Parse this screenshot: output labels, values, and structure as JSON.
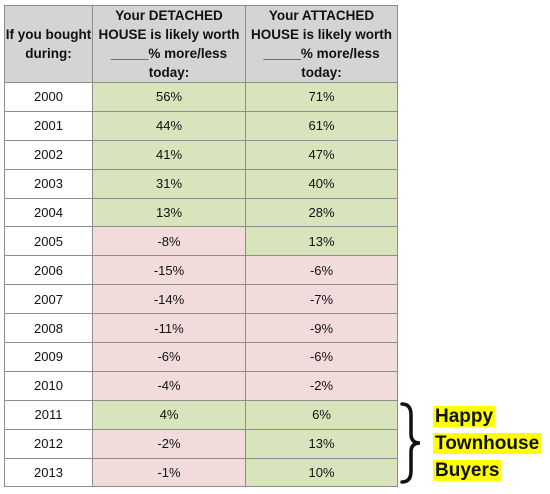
{
  "headers": {
    "year": "If you bought during:",
    "detached": "Your DETACHED HOUSE is likely worth _____% more/less today:",
    "attached": "Your ATTACHED HOUSE is likely worth _____% more/less today:"
  },
  "rows": [
    {
      "year": "2000",
      "detached": "56%",
      "attached": "71%"
    },
    {
      "year": "2001",
      "detached": "44%",
      "attached": "61%"
    },
    {
      "year": "2002",
      "detached": "41%",
      "attached": "47%"
    },
    {
      "year": "2003",
      "detached": "31%",
      "attached": "40%"
    },
    {
      "year": "2004",
      "detached": "13%",
      "attached": "28%"
    },
    {
      "year": "2005",
      "detached": "-8%",
      "attached": "13%"
    },
    {
      "year": "2006",
      "detached": "-15%",
      "attached": "-6%"
    },
    {
      "year": "2007",
      "detached": "-14%",
      "attached": "-7%"
    },
    {
      "year": "2008",
      "detached": "-11%",
      "attached": "-9%"
    },
    {
      "year": "2009",
      "detached": "-6%",
      "attached": "-6%"
    },
    {
      "year": "2010",
      "detached": "-4%",
      "attached": "-2%"
    },
    {
      "year": "2011",
      "detached": "4%",
      "attached": "6%"
    },
    {
      "year": "2012",
      "detached": "-2%",
      "attached": "13%"
    },
    {
      "year": "2013",
      "detached": "-1%",
      "attached": "10%"
    }
  ],
  "annotation": {
    "lines": [
      "Happy",
      "Townhouse",
      "Buyers"
    ],
    "highlight_color": "#ffff00"
  },
  "colors": {
    "positive": "#d7e4bc",
    "negative": "#f2dcdb",
    "header": "#d4d4d4"
  }
}
